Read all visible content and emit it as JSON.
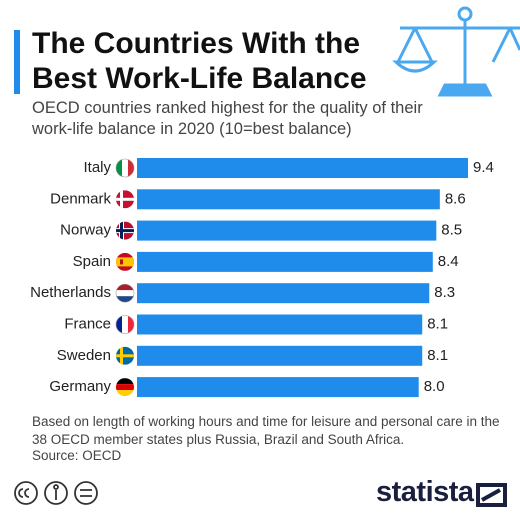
{
  "chart_data": {
    "type": "bar",
    "orientation": "horizontal",
    "title": "The Countries With the Best Work-Life Balance",
    "subtitle": "OECD countries ranked highest for the quality of their work-life balance in 2020 (10=best balance)",
    "categories": [
      "Italy",
      "Denmark",
      "Norway",
      "Spain",
      "Netherlands",
      "France",
      "Sweden",
      "Germany"
    ],
    "values": [
      9.4,
      8.6,
      8.5,
      8.4,
      8.3,
      8.1,
      8.1,
      8.0
    ],
    "value_labels": [
      "9.4",
      "8.6",
      "8.5",
      "8.4",
      "8.3",
      "8.1",
      "8.1",
      "8.0"
    ],
    "color": "#1f8ceb",
    "note": "Based on length of working hours and time for leisure and personal care in the 38 OECD member states plus Russia, Brazil and South Africa.",
    "source": "Source: OECD",
    "brand": "statista"
  }
}
